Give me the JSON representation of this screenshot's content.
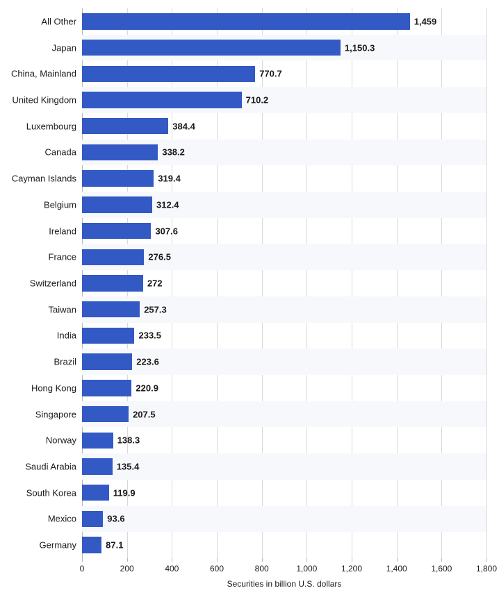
{
  "chart": {
    "type": "bar",
    "orientation": "horizontal",
    "xlabel": "Securities in billion U.S. dollars",
    "xlim": [
      0,
      1800
    ],
    "xtick_step": 200,
    "xticks": [
      0,
      200,
      400,
      600,
      800,
      1000,
      1200,
      1400,
      1600,
      1800
    ],
    "xticklabels": [
      "0",
      "200",
      "400",
      "600",
      "800",
      "1,000",
      "1,200",
      "1,400",
      "1,600",
      "1,800"
    ],
    "bar_color": "#3359c4",
    "background_color": "#ffffff",
    "band_color": "#f7f8fb",
    "grid_color": "#d9d9d9",
    "axis_color": "#b8b8b8",
    "label_fontsize": 12,
    "value_fontsize": 13,
    "value_fontweight": 700,
    "bar_fill_ratio": 0.62,
    "data": [
      {
        "label": "All Other",
        "value": 1459,
        "display": "1,459"
      },
      {
        "label": "Japan",
        "value": 1150.3,
        "display": "1,150.3"
      },
      {
        "label": "China, Mainland",
        "value": 770.7,
        "display": "770.7"
      },
      {
        "label": "United Kingdom",
        "value": 710.2,
        "display": "710.2"
      },
      {
        "label": "Luxembourg",
        "value": 384.4,
        "display": "384.4"
      },
      {
        "label": "Canada",
        "value": 338.2,
        "display": "338.2"
      },
      {
        "label": "Cayman Islands",
        "value": 319.4,
        "display": "319.4"
      },
      {
        "label": "Belgium",
        "value": 312.4,
        "display": "312.4"
      },
      {
        "label": "Ireland",
        "value": 307.6,
        "display": "307.6"
      },
      {
        "label": "France",
        "value": 276.5,
        "display": "276.5"
      },
      {
        "label": "Switzerland",
        "value": 272,
        "display": "272"
      },
      {
        "label": "Taiwan",
        "value": 257.3,
        "display": "257.3"
      },
      {
        "label": "India",
        "value": 233.5,
        "display": "233.5"
      },
      {
        "label": "Brazil",
        "value": 223.6,
        "display": "223.6"
      },
      {
        "label": "Hong Kong",
        "value": 220.9,
        "display": "220.9"
      },
      {
        "label": "Singapore",
        "value": 207.5,
        "display": "207.5"
      },
      {
        "label": "Norway",
        "value": 138.3,
        "display": "138.3"
      },
      {
        "label": "Saudi Arabia",
        "value": 135.4,
        "display": "135.4"
      },
      {
        "label": "South Korea",
        "value": 119.9,
        "display": "119.9"
      },
      {
        "label": "Mexico",
        "value": 93.6,
        "display": "93.6"
      },
      {
        "label": "Germany",
        "value": 87.1,
        "display": "87.1"
      }
    ]
  }
}
